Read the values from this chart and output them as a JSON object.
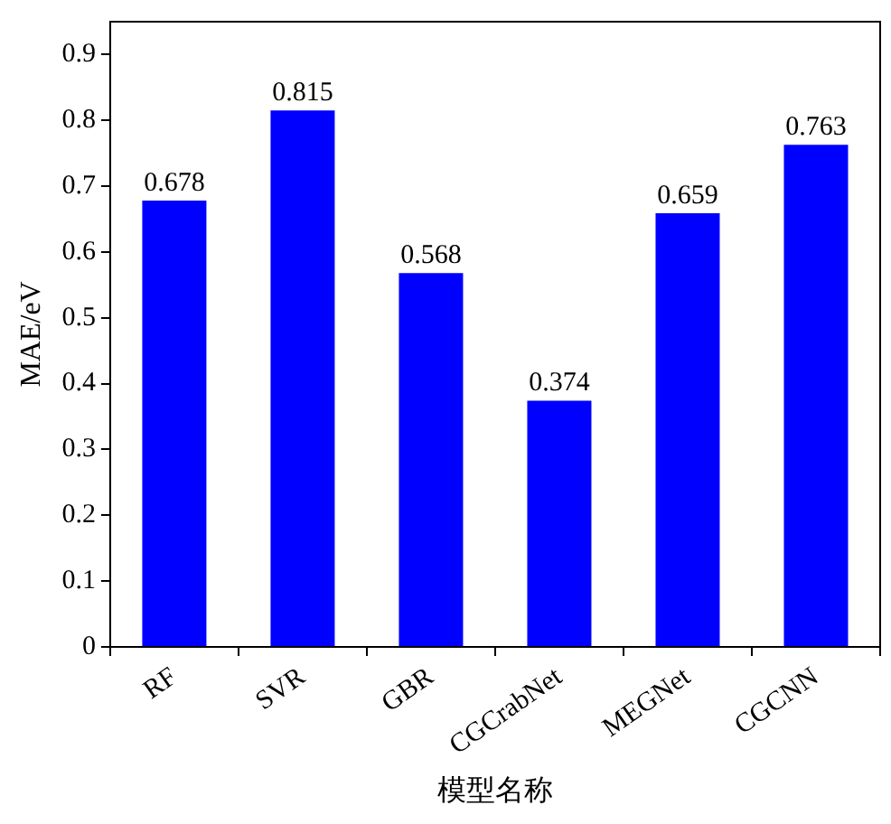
{
  "chart_data": {
    "type": "bar",
    "xlabel": "模型名称",
    "ylabel": "MAE/eV",
    "categories": [
      "RF",
      "SVR",
      "GBR",
      "CGCrabNet",
      "MEGNet",
      "CGCNN"
    ],
    "values": [
      0.678,
      0.815,
      0.568,
      0.374,
      0.659,
      0.763
    ],
    "color": "#0000ff",
    "ylim": [
      0,
      0.95
    ],
    "yticks": [
      0,
      0.1,
      0.2,
      0.3,
      0.4,
      0.5,
      0.6,
      0.7,
      0.8,
      0.9
    ],
    "data_labels": true,
    "grid": false,
    "legend": false
  }
}
